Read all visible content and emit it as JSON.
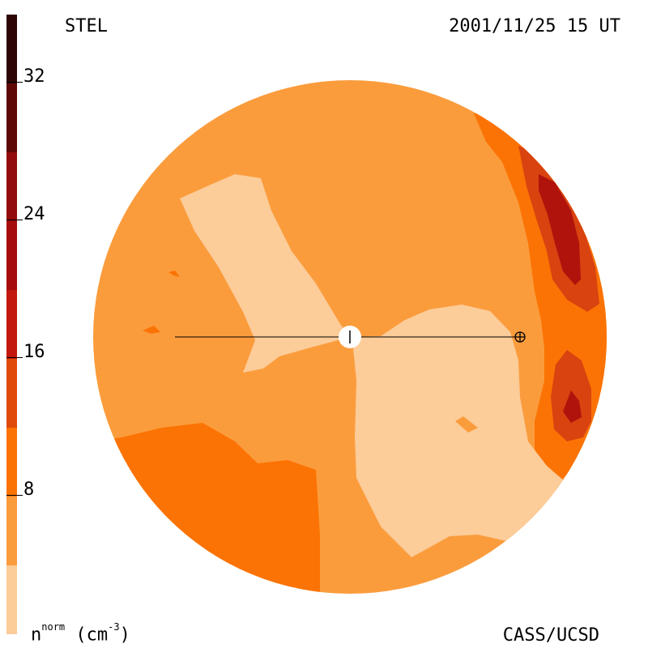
{
  "header": {
    "left_label": "STEL",
    "right_label": "2001/11/25 15 UT"
  },
  "footer": {
    "unit_base": "n",
    "unit_sup": "norm",
    "unit_paren_open": " (cm",
    "unit_sup2": "-3",
    "unit_paren_close": ")",
    "credit": "CASS/UCSD"
  },
  "colorbar": {
    "ticks": [
      "8",
      "16",
      "24",
      "32"
    ],
    "levels": [
      {
        "color": "#fccc99"
      },
      {
        "color": "#fb9c3c"
      },
      {
        "color": "#fb7304"
      },
      {
        "color": "#e04a0a"
      },
      {
        "color": "#c2180e"
      },
      {
        "color": "#930b0b"
      },
      {
        "color": "#5e0707"
      },
      {
        "color": "#2e0505"
      }
    ]
  },
  "colors": {
    "background_level": "#fb9c3c",
    "light_level": "#fccc99",
    "mid_level": "#fb7304",
    "high_level": "#d84310",
    "peak_level": "#b0120c"
  }
}
